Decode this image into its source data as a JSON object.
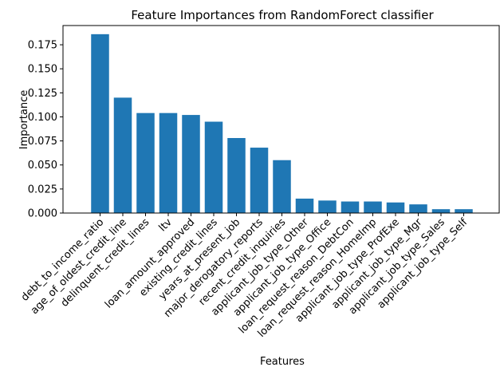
{
  "chart_data": {
    "type": "bar",
    "title": "Feature Importances from RandomForect classifier",
    "xlabel": "Features",
    "ylabel": "Importance",
    "ylim": [
      0,
      0.195
    ],
    "yticks": [
      "0.000",
      "0.025",
      "0.050",
      "0.075",
      "0.100",
      "0.125",
      "0.150",
      "0.175"
    ],
    "categories": [
      "debt_to_income_ratio",
      "age_of_oldest_credit_line",
      "delinquent_credit_lines",
      "ltv",
      "loan_amount_approved",
      "existing_credit_lines",
      "years_at_present_job",
      "major_derogatory_reports",
      "recent_credit_inquiries",
      "applicant_job_type_Other",
      "applicant_job_type_Office",
      "loan_request_reason_DebtCon",
      "loan_request_reason_HomeImp",
      "applicant_job_type_ProfExe",
      "applicant_job_type_Mgr",
      "applicant_job_type_Sales",
      "applicant_job_type_Self"
    ],
    "values": [
      0.186,
      0.12,
      0.104,
      0.104,
      0.102,
      0.095,
      0.078,
      0.068,
      0.055,
      0.015,
      0.013,
      0.012,
      0.012,
      0.011,
      0.009,
      0.004,
      0.004
    ],
    "bar_color": "#1f77b4",
    "grid": false
  }
}
